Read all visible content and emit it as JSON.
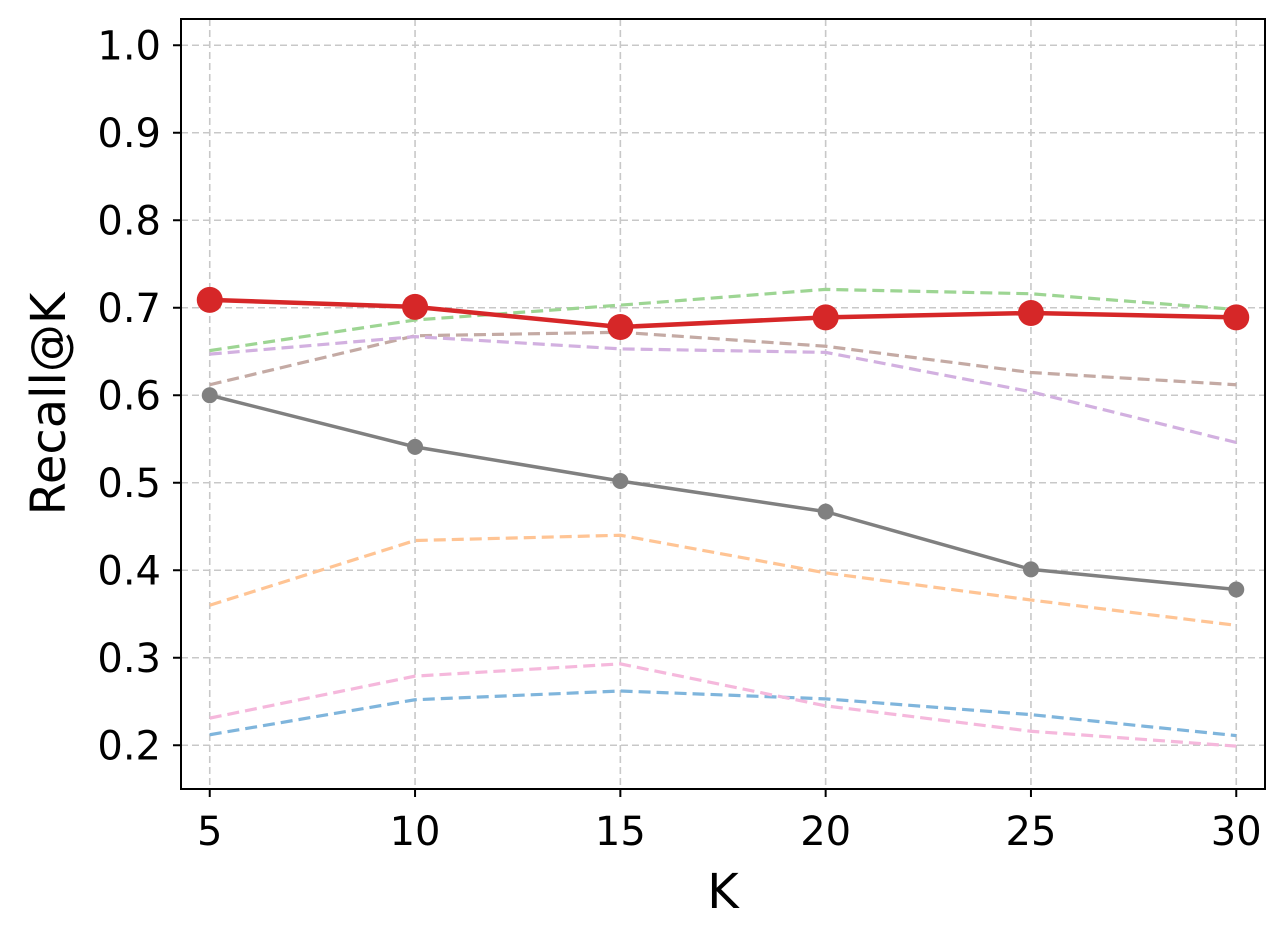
{
  "chart_data": {
    "type": "line",
    "xlabel": "K",
    "ylabel": "Recall@K",
    "x": [
      5,
      10,
      15,
      20,
      25,
      30
    ],
    "xlim": [
      4.3,
      30.7
    ],
    "ylim": [
      0.15,
      1.03
    ],
    "xticks": [
      "5",
      "10",
      "15",
      "20",
      "25",
      "30"
    ],
    "yticks": [
      "0.2",
      "0.3",
      "0.4",
      "0.5",
      "0.6",
      "0.7",
      "0.8",
      "0.9",
      "1.0"
    ],
    "grid": true,
    "series": [
      {
        "color": "#7fb5dc",
        "style": "dashed",
        "marker": false,
        "values": [
          0.212,
          0.252,
          0.262,
          0.253,
          0.235,
          0.211
        ]
      },
      {
        "color": "#f5b8dc",
        "style": "dashed",
        "marker": false,
        "values": [
          0.231,
          0.279,
          0.293,
          0.245,
          0.216,
          0.199
        ]
      },
      {
        "color": "#ffc494",
        "style": "dashed",
        "marker": false,
        "values": [
          0.36,
          0.434,
          0.44,
          0.397,
          0.366,
          0.337
        ]
      },
      {
        "color": "#c4aaa4",
        "style": "dashed",
        "marker": false,
        "values": [
          0.612,
          0.668,
          0.672,
          0.656,
          0.626,
          0.612
        ]
      },
      {
        "color": "#d2b0e0",
        "style": "dashed",
        "marker": false,
        "values": [
          0.647,
          0.667,
          0.653,
          0.649,
          0.604,
          0.546
        ]
      },
      {
        "color": "#9dd593",
        "style": "dashed",
        "marker": false,
        "values": [
          0.651,
          0.686,
          0.703,
          0.721,
          0.716,
          0.698
        ]
      },
      {
        "color": "#808080",
        "style": "solid",
        "marker": true,
        "values": [
          0.6,
          0.541,
          0.502,
          0.467,
          0.401,
          0.378
        ]
      },
      {
        "color": "#d62728",
        "style": "solid",
        "marker": true,
        "values": [
          0.709,
          0.701,
          0.678,
          0.689,
          0.694,
          0.689
        ]
      }
    ]
  }
}
